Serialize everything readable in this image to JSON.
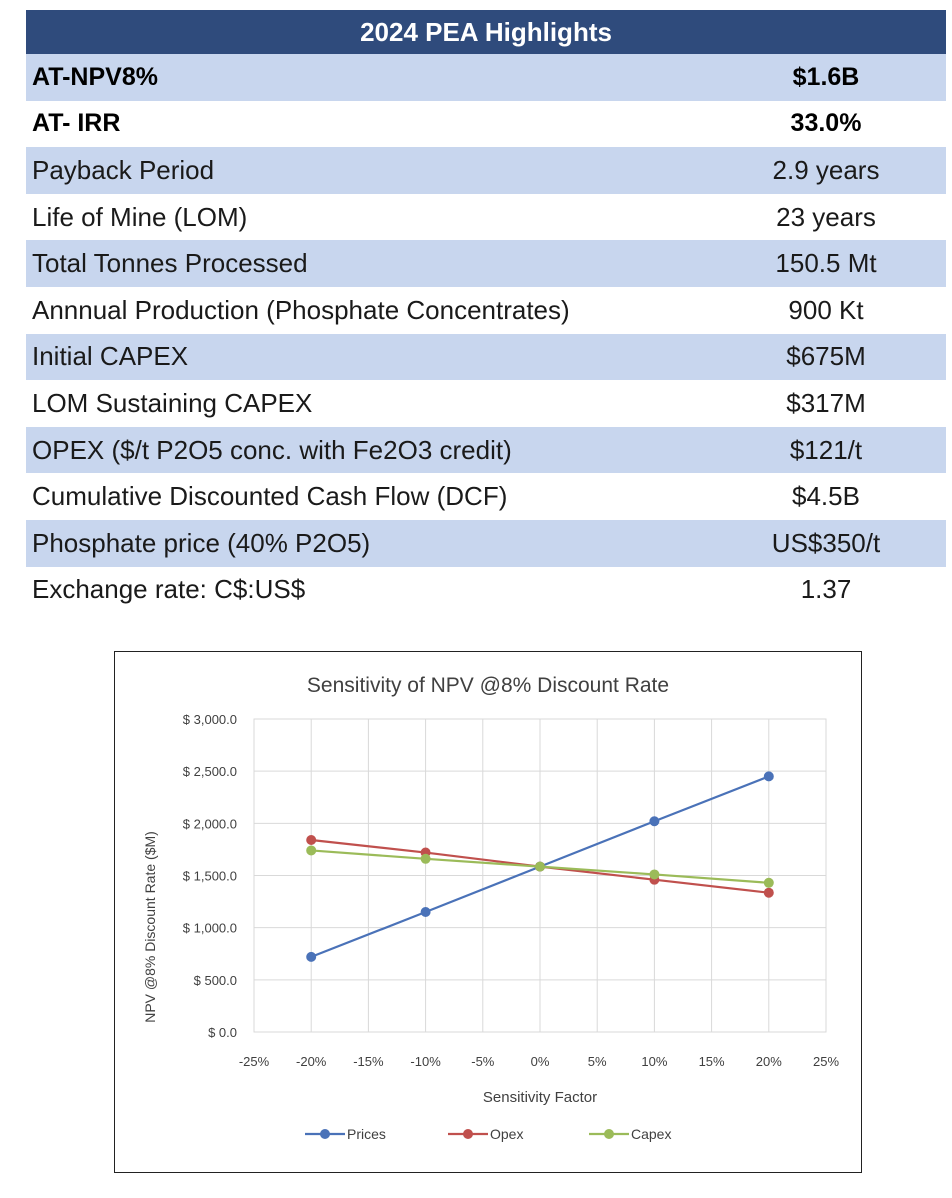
{
  "table": {
    "title": "2024 PEA Highlights",
    "rows": [
      {
        "label": "AT-NPV8%",
        "value": "$1.6B",
        "bold": true,
        "shade": true
      },
      {
        "label": "AT- IRR",
        "value": "33.0%",
        "bold": true,
        "shade": false
      },
      {
        "label": "Payback Period",
        "value": "2.9 years",
        "bold": false,
        "shade": true
      },
      {
        "label": "Life of Mine (LOM)",
        "value": "23 years",
        "bold": false,
        "shade": false
      },
      {
        "label": "Total Tonnes Processed",
        "value": "150.5 Mt",
        "bold": false,
        "shade": true
      },
      {
        "label": "Annnual Production (Phosphate Concentrates)",
        "value": "900 Kt",
        "bold": false,
        "shade": false
      },
      {
        "label": "Initial CAPEX",
        "value": "$675M",
        "bold": false,
        "shade": true
      },
      {
        "label": "LOM Sustaining CAPEX",
        "value": "$317M",
        "bold": false,
        "shade": false
      },
      {
        "label": "OPEX ($/t P2O5 conc. with Fe2O3 credit)",
        "value": "$121/t",
        "bold": false,
        "shade": true
      },
      {
        "label": "Cumulative Discounted Cash Flow (DCF)",
        "value": "$4.5B",
        "bold": false,
        "shade": false
      },
      {
        "label": "Phosphate price (40% P2O5)",
        "value": "US$350/t",
        "bold": false,
        "shade": true
      },
      {
        "label": "Exchange rate: C$:US$",
        "value": "1.37",
        "bold": false,
        "shade": false
      }
    ]
  },
  "chart_data": {
    "type": "line",
    "title": "Sensitivity of NPV @8% Discount Rate",
    "xlabel": "Sensitivity Factor",
    "ylabel": "NPV @8% Discount Rate  ($M)",
    "xlim": [
      -25,
      25
    ],
    "ylim": [
      0,
      3000
    ],
    "x_ticks": [
      -25,
      -20,
      -15,
      -10,
      -5,
      0,
      5,
      10,
      15,
      20,
      25
    ],
    "x_tick_labels": [
      "-25%",
      "-20%",
      "-15%",
      "-10%",
      "-5%",
      "0%",
      "5%",
      "10%",
      "15%",
      "20%",
      "25%"
    ],
    "y_ticks": [
      0,
      500,
      1000,
      1500,
      2000,
      2500,
      3000
    ],
    "y_tick_labels": [
      "$ 0.0",
      "$ 500.0",
      "$ 1,000.0",
      "$ 1,500.0",
      "$ 2,000.0",
      "$ 2,500.0",
      "$ 3,000.0"
    ],
    "grid": true,
    "legend_position": "bottom",
    "x": [
      -20,
      -10,
      0,
      10,
      20
    ],
    "series": [
      {
        "name": "Prices",
        "color": "#4a72b8",
        "values": [
          720,
          1150,
          1585,
          2020,
          2450
        ]
      },
      {
        "name": "Opex",
        "color": "#c0504d",
        "values": [
          1840,
          1720,
          1585,
          1460,
          1335
        ]
      },
      {
        "name": "Capex",
        "color": "#9bbb59",
        "values": [
          1740,
          1660,
          1585,
          1510,
          1430
        ]
      }
    ]
  }
}
